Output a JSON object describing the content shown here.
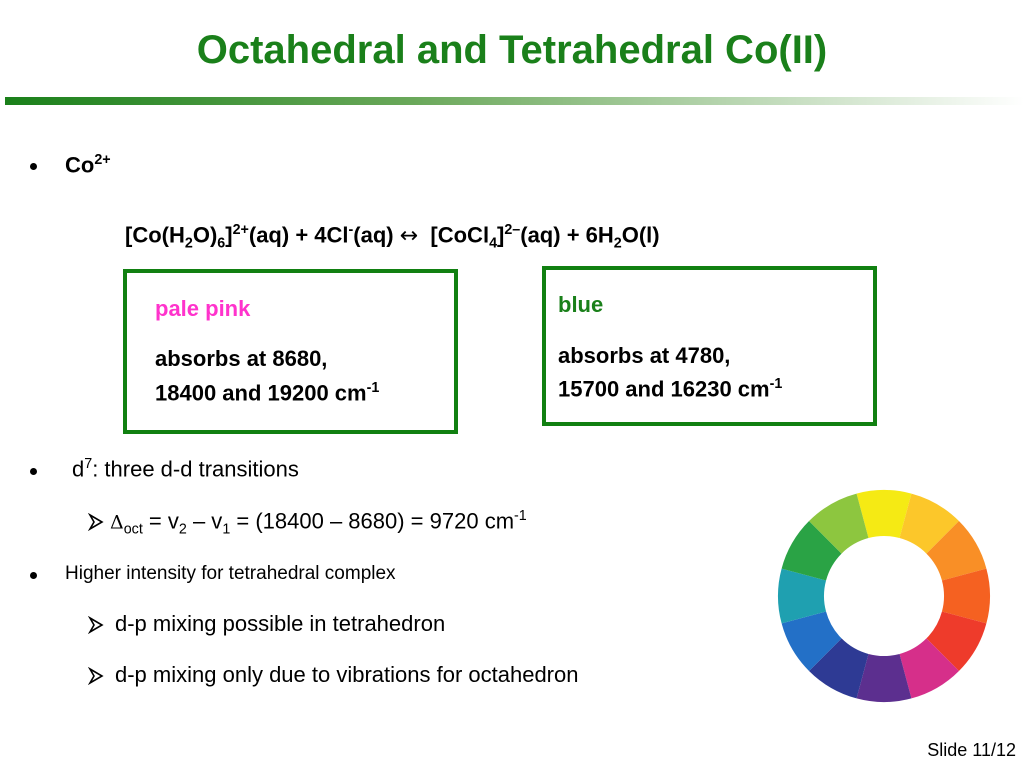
{
  "title": "Octahedral and Tetrahedral Co(II)",
  "bullet1": {
    "text": "Co",
    "sup": "2+"
  },
  "equation": [
    "[Co(H",
    "2",
    "O)",
    "6",
    "]",
    "2+",
    "(aq) + 4Cl",
    "-",
    "(aq)",
    "↔",
    "[CoCl",
    "4",
    "]",
    "2–",
    "(aq) + 6H",
    "2",
    "O(l)"
  ],
  "box_octahedral": {
    "color": "pale pink",
    "lines": [
      "absorbs at 8680,",
      "18400 and 19200 cm",
      "-1"
    ]
  },
  "box_tetrahedral": {
    "color": "blue",
    "lines": [
      "absorbs at 4780,",
      "15700 and 16230 cm",
      "-1"
    ]
  },
  "bullet2": [
    "d",
    "7",
    ": three d-d transitions"
  ],
  "bullet2_sub": [
    "Δ",
    "oct",
    " = v",
    "2",
    " – v",
    "1",
    " = (18400 – 8680) = 9720 cm",
    "-1"
  ],
  "bullet3": "Higher intensity for tetrahedral complex",
  "bullet3_subs": [
    "d-p mixing possible in tetrahedron",
    "d-p mixing only due to vibrations for octahedron"
  ],
  "footer": "Slide 11/12"
}
